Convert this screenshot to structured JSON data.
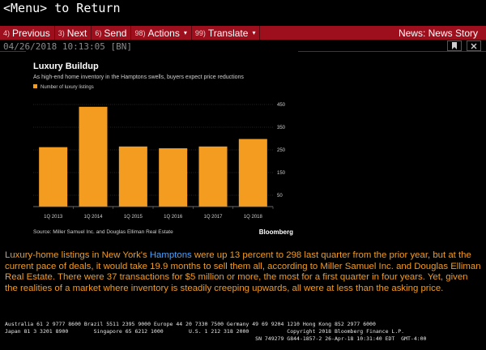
{
  "header": {
    "return_hint": "<Menu> to Return"
  },
  "toolbar": {
    "buttons": [
      {
        "num": "4)",
        "label": "Previous"
      },
      {
        "num": "3)",
        "label": "Next"
      },
      {
        "num": "6)",
        "label": "Send"
      },
      {
        "num": "98)",
        "label": "Actions",
        "caret": "▾"
      },
      {
        "num": "99)",
        "label": "Translate",
        "caret": "▾"
      }
    ],
    "right_title": "News: News Story"
  },
  "story": {
    "timestamp": "04/26/2018 10:13:05 [BN]"
  },
  "icons": {
    "bookmark": "bookmark-icon",
    "close": "close-icon"
  },
  "chart_data": {
    "type": "bar",
    "title": "Luxury Buildup",
    "subtitle": "As high-end home inventory in the Hamptons swells, buyers expect price reductions",
    "legend": "Number of luxury listings",
    "categories": [
      "1Q 2013",
      "1Q 2014",
      "1Q 2015",
      "1Q 2016",
      "1Q 2017",
      "1Q 2018"
    ],
    "values": [
      262,
      440,
      265,
      257,
      265,
      298
    ],
    "yticks": [
      450,
      350,
      250,
      150,
      50
    ],
    "ylim": [
      0,
      500
    ],
    "source": "Source: Miller Samuel Inc. and Douglas Elliman Real Estate",
    "brand": "Bloomberg",
    "bar_color": "#f39c1f"
  },
  "article": {
    "p1": "Luxury-home listings in New York's ",
    "link": "Hamptons",
    "p2": " were up 13 percent to 298 last quarter from the prior year, but at the current pace of deals, it would take 19.9 months to sell them all, according to Miller Samuel Inc. and Douglas Elliman Real Estate. There were 37 transactions for $5 million or more, the most for a first quarter in four years. Yet, given the realities of a market where inventory is steadily creeping upwards, all were at less than the asking price."
  },
  "footer": {
    "line1": "Australia 61 2 9777 8600 Brazil 5511 2395 9000 Europe 44 20 7330 7500 Germany 49 69 9204 1210 Hong Kong 852 2977 6000",
    "line2": "Japan 81 3 3201 8900        Singapore 65 6212 1000        U.S. 1 212 318 2000            Copyright 2018 Bloomberg Finance L.P.",
    "line3": "                                                                               SN 749279 G844-1857-2 26-Apr-18 10:31:40 EDT  GMT-4:00"
  }
}
